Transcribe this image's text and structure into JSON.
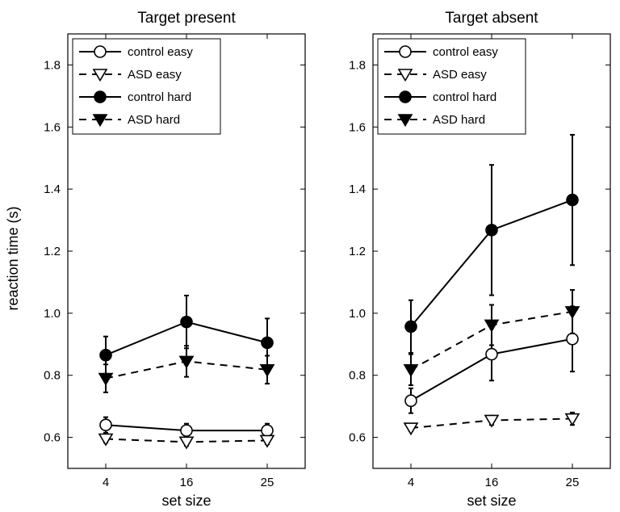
{
  "chart_data": [
    {
      "type": "line",
      "title": "Target present",
      "xlabel": "set size",
      "ylabel": "reaction time (s)",
      "x": [
        "4",
        "16",
        "25"
      ],
      "ylim": [
        0.5,
        1.9
      ],
      "yticks": [
        "0.6",
        "0.8",
        "1.0",
        "1.2",
        "1.4",
        "1.6",
        "1.8"
      ],
      "legend_position": "top-left",
      "series": [
        {
          "name": "control easy",
          "marker": "open-circle",
          "line": "solid",
          "values": [
            0.64,
            0.622,
            0.622
          ],
          "errors": [
            0.025,
            0.022,
            0.022
          ]
        },
        {
          "name": "ASD easy",
          "marker": "open-triangle",
          "line": "dashed",
          "values": [
            0.595,
            0.585,
            0.59
          ],
          "errors": [
            0.012,
            0.012,
            0.012
          ]
        },
        {
          "name": "control hard",
          "marker": "filled-circle",
          "line": "solid",
          "values": [
            0.865,
            0.972,
            0.905
          ],
          "errors": [
            0.06,
            0.085,
            0.078
          ]
        },
        {
          "name": "ASD hard",
          "marker": "filled-triangle",
          "line": "dashed",
          "values": [
            0.79,
            0.845,
            0.818
          ],
          "errors": [
            0.045,
            0.05,
            0.045
          ]
        }
      ]
    },
    {
      "type": "line",
      "title": "Target absent",
      "xlabel": "set size",
      "ylabel": "",
      "x": [
        "4",
        "16",
        "25"
      ],
      "ylim": [
        0.5,
        1.9
      ],
      "yticks": [
        "0.6",
        "0.8",
        "1.0",
        "1.2",
        "1.4",
        "1.6",
        "1.8"
      ],
      "legend_position": "top-left",
      "series": [
        {
          "name": "control easy",
          "marker": "open-circle",
          "line": "solid",
          "values": [
            0.718,
            0.868,
            0.917
          ],
          "errors": [
            0.04,
            0.085,
            0.105
          ]
        },
        {
          "name": "ASD easy",
          "marker": "open-triangle",
          "line": "dashed",
          "values": [
            0.63,
            0.655,
            0.66
          ],
          "errors": [
            0.01,
            0.015,
            0.02
          ]
        },
        {
          "name": "control hard",
          "marker": "filled-circle",
          "line": "solid",
          "values": [
            0.957,
            1.268,
            1.365
          ],
          "errors": [
            0.085,
            0.21,
            0.21
          ]
        },
        {
          "name": "ASD hard",
          "marker": "filled-triangle",
          "line": "dashed",
          "values": [
            0.818,
            0.962,
            1.005
          ],
          "errors": [
            0.05,
            0.065,
            0.07
          ]
        }
      ]
    }
  ]
}
